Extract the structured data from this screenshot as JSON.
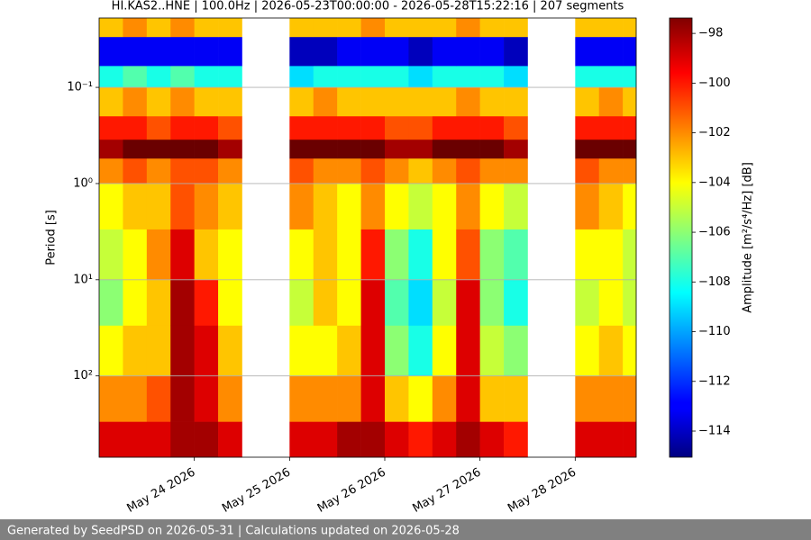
{
  "chart_data": {
    "type": "heatmap",
    "title": "HI.KAS2..HNE | 100.0Hz | 2026-05-23T00:00:00 - 2026-05-28T15:22:16 | 207 segments",
    "ylabel": "Period [s]",
    "colorbar_label": "Amplitude [m²/s⁴/Hz] [dB]",
    "footer": "Generated by SeedPSD on 2026-05-31 | Calculations updated on 2026-05-28",
    "xlim": [
      "2026-05-23T00:00:00",
      "2026-05-28T15:22:16"
    ],
    "xticks": [
      {
        "value": "2026-05-24T00:00:00",
        "label": "May 24 2026"
      },
      {
        "value": "2026-05-25T00:00:00",
        "label": "May 25 2026"
      },
      {
        "value": "2026-05-26T00:00:00",
        "label": "May 26 2026"
      },
      {
        "value": "2026-05-27T00:00:00",
        "label": "May 27 2026"
      },
      {
        "value": "2026-05-28T00:00:00",
        "label": "May 28 2026"
      }
    ],
    "ylim": [
      0.019,
      700
    ],
    "ylog": true,
    "grid": true,
    "yticks": [
      {
        "value": 0.1,
        "label": "10⁻¹"
      },
      {
        "value": 1,
        "label": "10⁰"
      },
      {
        "value": 10,
        "label": "10¹"
      },
      {
        "value": 100,
        "label": "10²"
      }
    ],
    "clim": [
      -115.05,
      -97.38
    ],
    "colormap": "jet",
    "cticks": [
      {
        "value": -98,
        "label": "−98"
      },
      {
        "value": -100,
        "label": "−100"
      },
      {
        "value": -102,
        "label": "−102"
      },
      {
        "value": -104,
        "label": "−104"
      },
      {
        "value": -106,
        "label": "−106"
      },
      {
        "value": -108,
        "label": "−108"
      },
      {
        "value": -110,
        "label": "−110"
      },
      {
        "value": -112,
        "label": "−112"
      },
      {
        "value": -114,
        "label": "−114"
      }
    ],
    "x_edges": [
      "2026-05-23T00:00:00",
      "2026-05-23T06:00:00",
      "2026-05-23T12:00:00",
      "2026-05-23T18:00:00",
      "2026-05-24T00:00:00",
      "2026-05-24T06:00:00",
      "2026-05-24T12:00:00",
      "2026-05-24T18:00:00",
      "2026-05-25T00:00:00",
      "2026-05-25T06:00:00",
      "2026-05-25T12:00:00",
      "2026-05-25T18:00:00",
      "2026-05-26T00:00:00",
      "2026-05-26T06:00:00",
      "2026-05-26T12:00:00",
      "2026-05-26T18:00:00",
      "2026-05-27T00:00:00",
      "2026-05-27T06:00:00",
      "2026-05-27T12:00:00",
      "2026-05-27T18:00:00",
      "2026-05-28T00:00:00",
      "2026-05-28T06:00:00",
      "2026-05-28T12:00:00",
      "2026-05-28T15:22:16"
    ],
    "y_edges": [
      0.019,
      0.03,
      0.06,
      0.1,
      0.2,
      0.35,
      0.55,
      1,
      3,
      10,
      30,
      100,
      300,
      700
    ],
    "values": [
      [
        -103,
        -113,
        -108,
        -103,
        -100,
        -98,
        -102,
        -104,
        -105,
        -106,
        -104,
        -102,
        -99
      ],
      [
        -102,
        -113,
        -107,
        -102,
        -100,
        -97,
        -101,
        -103,
        -104,
        -104,
        -103,
        -102,
        -99
      ],
      [
        -103,
        -113,
        -108,
        -103,
        -101,
        -97,
        -102,
        -103,
        -102,
        -103,
        -103,
        -101,
        -99
      ],
      [
        -102,
        -113,
        -107,
        -102,
        -100,
        -97,
        -101,
        -101,
        -99,
        -98,
        -98,
        -98,
        -98
      ],
      [
        -103,
        -113,
        -108,
        -103,
        -100,
        -97,
        -101,
        -102,
        -103,
        -100,
        -99,
        -99,
        -98
      ],
      [
        -103,
        -113,
        -108,
        -103,
        -101,
        -98,
        -102,
        -103,
        -104,
        -104,
        -103,
        -102,
        -99
      ],
      [
        null,
        null,
        null,
        null,
        null,
        null,
        null,
        null,
        null,
        null,
        null,
        null,
        null
      ],
      [
        null,
        null,
        null,
        null,
        null,
        null,
        null,
        null,
        null,
        null,
        null,
        null,
        null
      ],
      [
        -103,
        -114,
        -109,
        -103,
        -100,
        -97,
        -101,
        -102,
        -104,
        -105,
        -104,
        -102,
        -99
      ],
      [
        -103,
        -114,
        -108,
        -102,
        -100,
        -97,
        -102,
        -103,
        -103,
        -103,
        -104,
        -102,
        -99
      ],
      [
        -103,
        -113,
        -108,
        -103,
        -100,
        -97,
        -102,
        -104,
        -104,
        -104,
        -103,
        -102,
        -98
      ],
      [
        -102,
        -113,
        -108,
        -103,
        -100,
        -97,
        -101,
        -102,
        -100,
        -99,
        -99,
        -99,
        -98
      ],
      [
        -103,
        -113,
        -108,
        -103,
        -101,
        -98,
        -102,
        -104,
        -106,
        -107,
        -106,
        -103,
        -99
      ],
      [
        -103,
        -114,
        -109,
        -103,
        -101,
        -98,
        -103,
        -105,
        -108,
        -109,
        -108,
        -104,
        -100
      ],
      [
        -103,
        -113,
        -108,
        -103,
        -100,
        -97,
        -102,
        -104,
        -104,
        -105,
        -104,
        -102,
        -99
      ],
      [
        -102,
        -113,
        -108,
        -102,
        -100,
        -97,
        -101,
        -102,
        -101,
        -99,
        -99,
        -99,
        -98
      ],
      [
        -103,
        -113,
        -108,
        -103,
        -100,
        -97,
        -102,
        -104,
        -106,
        -106,
        -105,
        -103,
        -99
      ],
      [
        -103,
        -114,
        -109,
        -103,
        -101,
        -98,
        -102,
        -105,
        -107,
        -108,
        -106,
        -103,
        -100
      ],
      [
        null,
        null,
        null,
        null,
        null,
        null,
        null,
        null,
        null,
        null,
        null,
        null,
        null
      ],
      [
        null,
        null,
        null,
        null,
        null,
        null,
        null,
        null,
        null,
        null,
        null,
        null,
        null
      ],
      [
        -103,
        -113,
        -108,
        -103,
        -100,
        -97,
        -101,
        -102,
        -104,
        -105,
        -104,
        -102,
        -99
      ],
      [
        -103,
        -113,
        -108,
        -102,
        -100,
        -97,
        -102,
        -103,
        -104,
        -104,
        -103,
        -102,
        -99
      ],
      [
        -103,
        -113,
        -108,
        -103,
        -100,
        -97,
        -102,
        -104,
        -105,
        -105,
        -104,
        -102,
        -99
      ]
    ]
  }
}
